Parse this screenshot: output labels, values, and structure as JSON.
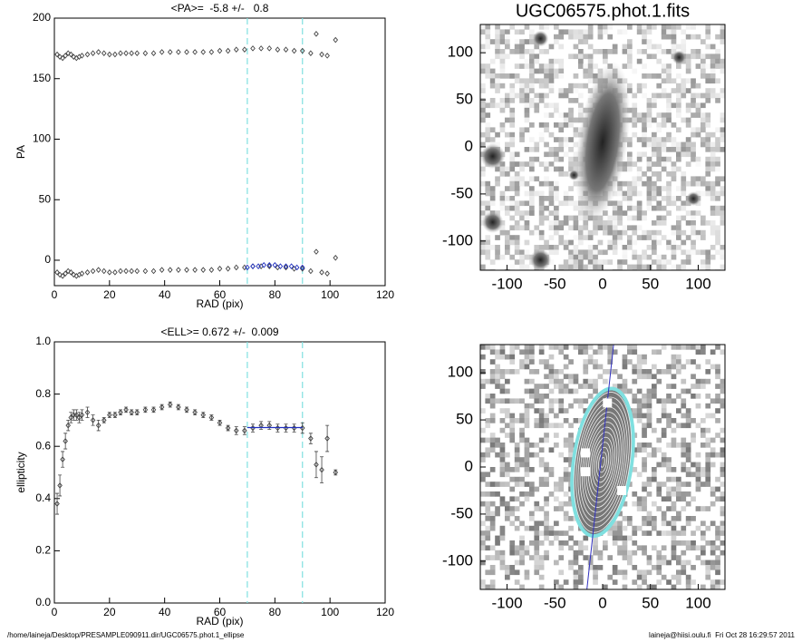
{
  "chart_data": [
    {
      "type": "scatter",
      "title": "<PA>=  -5.8 +/-   0.8",
      "x_label": "RAD (pix)",
      "y_label": "PA",
      "xlim": [
        0,
        120
      ],
      "ylim": [
        -21,
        200
      ],
      "xticks": [
        0,
        20,
        40,
        60,
        80,
        100,
        120
      ],
      "yticks": [
        0,
        50,
        100,
        150,
        200
      ],
      "vlines": [
        70,
        90
      ],
      "vline_color": "#7fe0e0",
      "series": [
        {
          "color": "#444444",
          "x": [
            1,
            2,
            3,
            4,
            5,
            6,
            7,
            8,
            9,
            10,
            12,
            14,
            16,
            18,
            20,
            22,
            24,
            26,
            28,
            30,
            33,
            36,
            39,
            42,
            45,
            48,
            51,
            54,
            57,
            60,
            63,
            66,
            69,
            72,
            75,
            78,
            81,
            84,
            87,
            90,
            93,
            95,
            97,
            99,
            102
          ],
          "values": [
            170,
            168,
            167,
            169,
            171,
            170,
            168,
            167,
            168,
            169,
            170,
            171,
            172,
            171,
            170,
            170,
            171,
            171,
            171,
            171,
            171,
            171,
            172,
            172,
            172,
            172,
            172,
            172,
            172,
            173,
            173,
            174,
            174,
            175,
            175,
            175,
            174,
            174,
            173,
            173,
            171,
            187,
            170,
            169,
            182
          ]
        },
        {
          "color": "#444444",
          "x": [
            1,
            2,
            3,
            4,
            5,
            6,
            7,
            8,
            9,
            10,
            12,
            14,
            16,
            18,
            20,
            22,
            24,
            26,
            28,
            30,
            33,
            36,
            39,
            42,
            45,
            48,
            51,
            54,
            57,
            60,
            63,
            66,
            69,
            72,
            75,
            78,
            81,
            84,
            87,
            90,
            93,
            95,
            97,
            99,
            102
          ],
          "values": [
            -10,
            -12,
            -13,
            -11,
            -9,
            -10,
            -12,
            -13,
            -12,
            -11,
            -10,
            -9,
            -8,
            -9,
            -10,
            -10,
            -9,
            -9,
            -9,
            -9,
            -9,
            -9,
            -8,
            -8,
            -8,
            -8,
            -8,
            -8,
            -8,
            -7,
            -7,
            -6,
            -6,
            -5,
            -5,
            -5,
            -6,
            -6,
            -7,
            -7,
            -9,
            7,
            -10,
            -11,
            2
          ]
        },
        {
          "color": "#2030c0",
          "x": [
            70,
            72,
            74,
            76,
            78,
            80,
            82,
            84,
            86,
            88,
            90
          ],
          "values": [
            -6,
            -5,
            -5,
            -4,
            -4,
            -4,
            -5,
            -5,
            -5,
            -6,
            -6
          ]
        }
      ]
    },
    {
      "type": "scatter",
      "title": "<ELL>= 0.672 +/-  0.009",
      "x_label": "RAD (pix)",
      "y_label": "ellipticity",
      "xlim": [
        0,
        120
      ],
      "ylim": [
        0,
        1
      ],
      "xticks": [
        0,
        20,
        40,
        60,
        80,
        100,
        120
      ],
      "yticks": [
        {
          "value": 0,
          "label": "0.0"
        },
        {
          "value": 0.2,
          "label": "0.2"
        },
        {
          "value": 0.4,
          "label": "0.4"
        },
        {
          "value": 0.6,
          "label": "0.6"
        },
        {
          "value": 0.8,
          "label": "0.8"
        },
        {
          "value": 1,
          "label": "1.0"
        }
      ],
      "vlines": [
        70,
        90
      ],
      "vline_color": "#7fe0e0",
      "fit_line": {
        "x": [
          70,
          90
        ],
        "value": 0.672,
        "color": "#2030c0"
      },
      "series": [
        {
          "color": "#444444",
          "x": [
            1,
            2,
            3,
            4,
            5,
            6,
            7,
            8,
            9,
            10,
            12,
            14,
            16,
            18,
            20,
            22,
            24,
            26,
            28,
            30,
            33,
            36,
            39,
            42,
            45,
            48,
            51,
            54,
            57,
            60,
            63,
            66,
            69,
            72,
            75,
            78,
            81,
            84,
            87,
            90,
            93,
            95,
            97,
            99,
            102
          ],
          "values": [
            0.38,
            0.45,
            0.55,
            0.62,
            0.68,
            0.71,
            0.72,
            0.72,
            0.71,
            0.72,
            0.73,
            0.7,
            0.68,
            0.7,
            0.72,
            0.72,
            0.73,
            0.74,
            0.73,
            0.73,
            0.74,
            0.74,
            0.75,
            0.76,
            0.75,
            0.74,
            0.73,
            0.72,
            0.71,
            0.69,
            0.67,
            0.66,
            0.66,
            0.67,
            0.68,
            0.68,
            0.67,
            0.67,
            0.67,
            0.67,
            0.63,
            0.53,
            0.51,
            0.63,
            0.5
          ],
          "errors": [
            0.04,
            0.04,
            0.03,
            0.03,
            0.02,
            0.02,
            0.02,
            0.02,
            0.02,
            0.02,
            0.02,
            0.02,
            0.02,
            0.01,
            0.01,
            0.01,
            0.01,
            0.01,
            0.01,
            0.01,
            0.01,
            0.01,
            0.01,
            0.01,
            0.01,
            0.01,
            0.01,
            0.01,
            0.01,
            0.01,
            0.01,
            0.015,
            0.015,
            0.015,
            0.015,
            0.015,
            0.015,
            0.015,
            0.015,
            0.02,
            0.02,
            0.05,
            0.05,
            0.05,
            0.01
          ]
        }
      ]
    },
    {
      "type": "image",
      "title": "UGC06575.phot.1.fits",
      "xlim": [
        -128,
        128
      ],
      "ylim": [
        -131,
        130
      ],
      "xticks": [
        -100,
        -50,
        0,
        50,
        100
      ],
      "yticks": [
        -100,
        -50,
        0,
        50,
        100
      ]
    },
    {
      "type": "image",
      "xlim": [
        -128,
        128
      ],
      "ylim": [
        -130,
        130
      ],
      "xticks": [
        -100,
        -50,
        0,
        50,
        100
      ],
      "yticks": [
        -100,
        -50,
        0,
        50,
        100
      ]
    }
  ],
  "footer": {
    "left": "/home/laineja/Desktop/PRESAMPLE090911.dir/UGC06575.phot.1_ellipse",
    "right": "laineja@hiisi.oulu.fi  Fri Oct 28 16:29:57 2011"
  }
}
